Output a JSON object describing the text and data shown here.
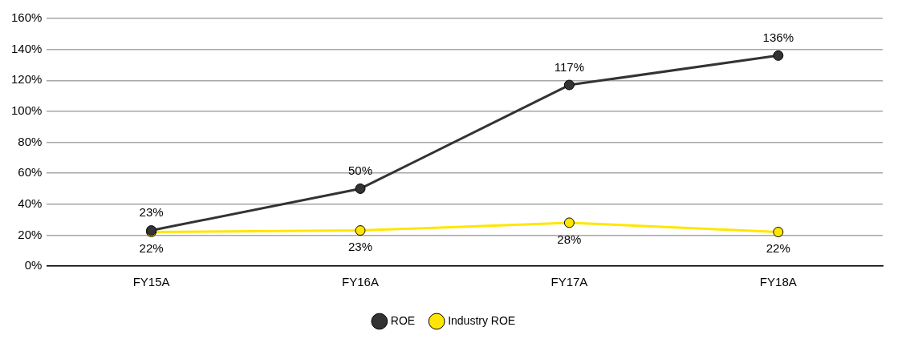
{
  "chart_data": {
    "type": "line",
    "categories": [
      "FY15A",
      "FY16A",
      "FY17A",
      "FY18A"
    ],
    "series": [
      {
        "name": "ROE",
        "color": "#333333",
        "values": [
          23,
          50,
          117,
          136
        ],
        "value_labels": [
          "23%",
          "50%",
          "117%",
          "136%"
        ]
      },
      {
        "name": "Industry ROE",
        "color": "#ffe600",
        "values": [
          22,
          23,
          28,
          22
        ],
        "value_labels": [
          "22%",
          "23%",
          "28%",
          "22%"
        ]
      }
    ],
    "ylim": [
      0,
      160
    ],
    "yticks": [
      {
        "value": 0,
        "label": "0%"
      },
      {
        "value": 20,
        "label": "20%"
      },
      {
        "value": 40,
        "label": "40%"
      },
      {
        "value": 60,
        "label": "60%"
      },
      {
        "value": 80,
        "label": "80%"
      },
      {
        "value": 100,
        "label": "100%"
      },
      {
        "value": 120,
        "label": "120%"
      },
      {
        "value": 140,
        "label": "140%"
      },
      {
        "value": 160,
        "label": "160%"
      }
    ],
    "grid": "y",
    "legend": "bottom",
    "marker": "circle",
    "line_style": "solid"
  }
}
